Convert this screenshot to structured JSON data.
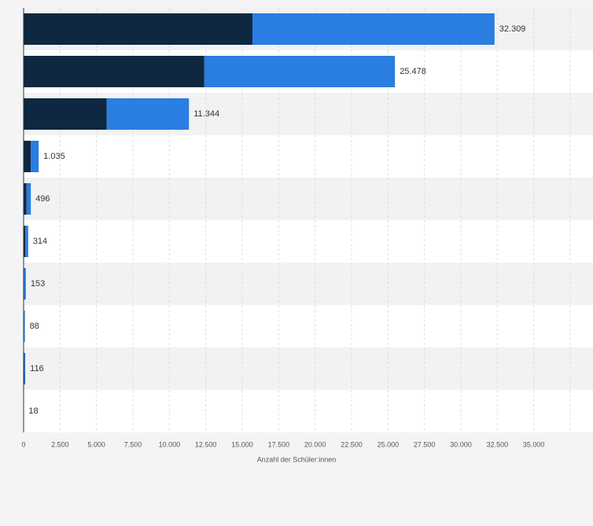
{
  "chart_data": {
    "type": "stacked-barh",
    "categories": [
      null,
      null,
      null,
      null,
      null,
      null,
      null,
      null,
      null,
      null
    ],
    "series": [
      {
        "color": "#0f2841",
        "values": [
          15700,
          12400,
          5700,
          500,
          200,
          120,
          20,
          40,
          50,
          8
        ]
      },
      {
        "color": "#2a7de1",
        "values": [
          16609,
          13078,
          5644,
          535,
          296,
          194,
          133,
          48,
          66,
          10
        ]
      }
    ],
    "totals": {
      "values": [
        32309,
        25478,
        11344,
        1035,
        496,
        314,
        153,
        88,
        116,
        18
      ],
      "value_labels": [
        "32.309",
        "25.478",
        "11.344",
        "1.035",
        "496",
        "314",
        "153",
        "88",
        "116",
        "18"
      ]
    },
    "xlabel": "Anzahl der Schüler:innen",
    "xlim": [
      0,
      37500
    ],
    "xticks": [
      0,
      {
        "value": 2500,
        "label": "2.500"
      },
      {
        "value": 5000,
        "label": "5.000"
      },
      {
        "value": 7500,
        "label": "7.500"
      },
      {
        "value": 10000,
        "label": "10.000"
      },
      {
        "value": 12500,
        "label": "12.500"
      },
      {
        "value": 15000,
        "label": "15.000"
      },
      {
        "value": 17500,
        "label": "17.500"
      },
      {
        "value": 20000,
        "label": "20.000"
      },
      {
        "value": 22500,
        "label": "22.500"
      },
      {
        "value": 25000,
        "label": "25.000"
      },
      {
        "value": 27500,
        "label": "27.500"
      },
      {
        "value": 30000,
        "label": "30.000"
      },
      {
        "value": 32500,
        "label": "32.500"
      },
      {
        "value": 35000,
        "label": "35.000"
      }
    ],
    "grid": true
  }
}
